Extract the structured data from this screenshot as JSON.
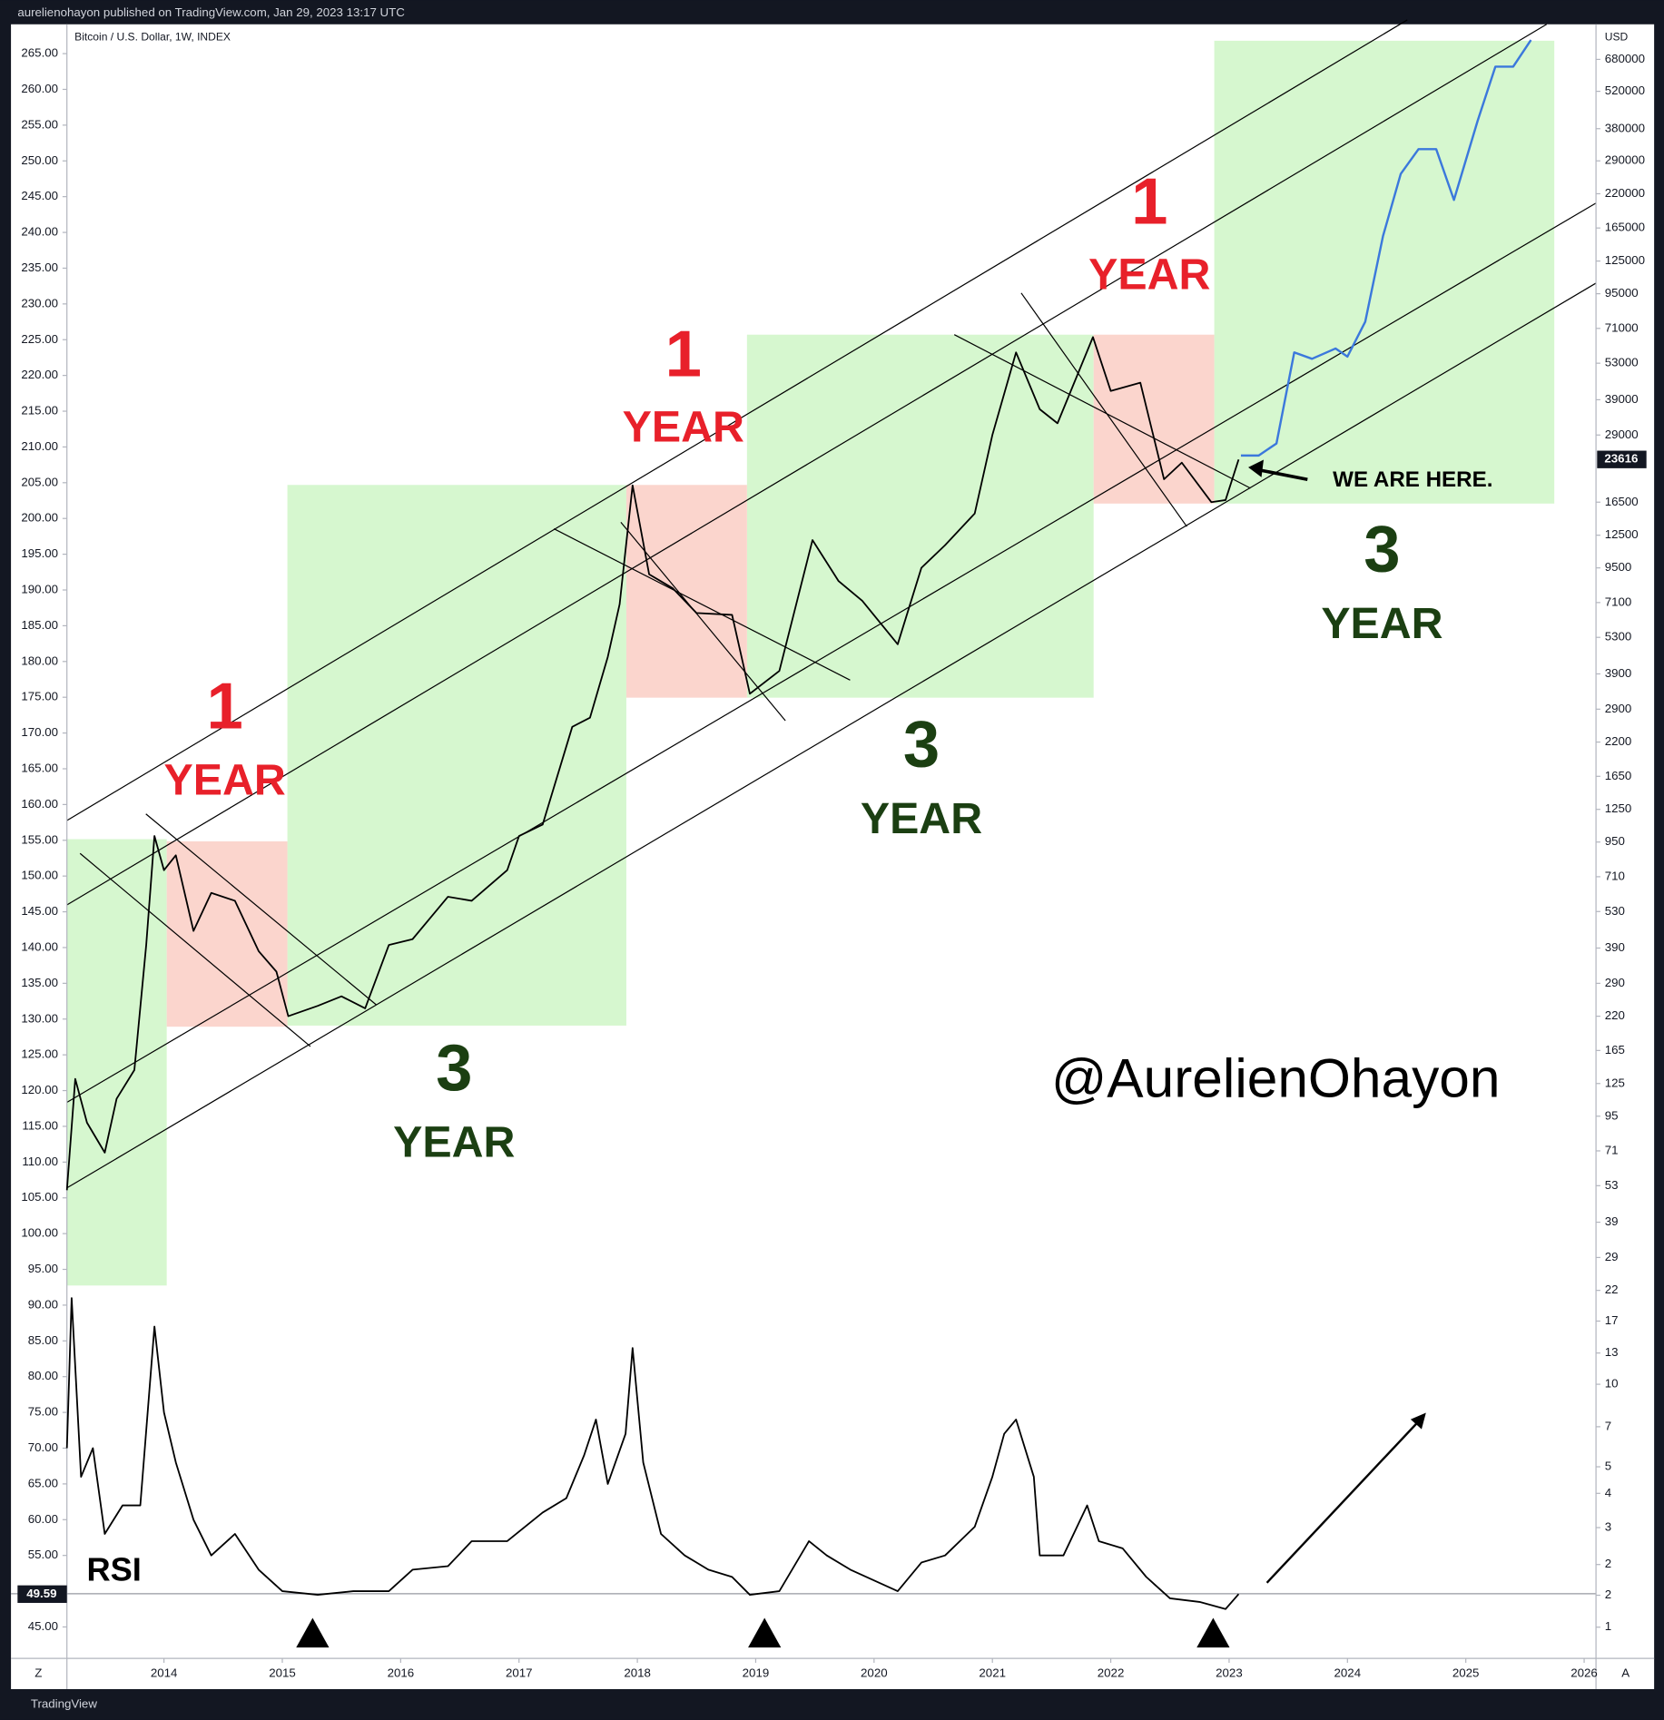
{
  "header": "aurelienohayon published on TradingView.com, Jan 29, 2023 13:17 UTC",
  "footer": "TradingView",
  "buttons": [
    "Z",
    "A"
  ],
  "chart_data": {
    "type": "line",
    "title": "Bitcoin / U.S. Dollar, 1W, INDEX",
    "y2label": "USD",
    "xlim": [
      2013.18,
      2026.1
    ],
    "xticks": [
      2014,
      2015,
      2016,
      2017,
      2018,
      2019,
      2020,
      2021,
      2022,
      2023,
      2024,
      2025,
      2026
    ],
    "ylim": [
      40.6,
      269.1
    ],
    "yticks": [
      {
        "value": 265,
        "label": "265.00"
      },
      {
        "value": 260,
        "label": "260.00"
      },
      {
        "value": 255,
        "label": "255.00"
      },
      {
        "value": 250,
        "label": "250.00"
      },
      {
        "value": 245,
        "label": "245.00"
      },
      {
        "value": 240,
        "label": "240.00"
      },
      {
        "value": 235,
        "label": "235.00"
      },
      {
        "value": 230,
        "label": "230.00"
      },
      {
        "value": 225,
        "label": "225.00"
      },
      {
        "value": 220,
        "label": "220.00"
      },
      {
        "value": 215,
        "label": "215.00"
      },
      {
        "value": 210,
        "label": "210.00"
      },
      {
        "value": 205,
        "label": "205.00"
      },
      {
        "value": 200,
        "label": "200.00"
      },
      {
        "value": 195,
        "label": "195.00"
      },
      {
        "value": 190,
        "label": "190.00"
      },
      {
        "value": 185,
        "label": "185.00"
      },
      {
        "value": 180,
        "label": "180.00"
      },
      {
        "value": 175,
        "label": "175.00"
      },
      {
        "value": 170,
        "label": "170.00"
      },
      {
        "value": 165,
        "label": "165.00"
      },
      {
        "value": 160,
        "label": "160.00"
      },
      {
        "value": 155,
        "label": "155.00"
      },
      {
        "value": 150,
        "label": "150.00"
      },
      {
        "value": 145,
        "label": "145.00"
      },
      {
        "value": 140,
        "label": "140.00"
      },
      {
        "value": 135,
        "label": "135.00"
      },
      {
        "value": 130,
        "label": "130.00"
      },
      {
        "value": 125,
        "label": "125.00"
      },
      {
        "value": 120,
        "label": "120.00"
      },
      {
        "value": 115,
        "label": "115.00"
      },
      {
        "value": 110,
        "label": "110.00"
      },
      {
        "value": 105,
        "label": "105.00"
      },
      {
        "value": 100,
        "label": "100.00"
      },
      {
        "value": 95,
        "label": "95.00"
      },
      {
        "value": 90,
        "label": "90.00"
      },
      {
        "value": 85,
        "label": "85.00"
      },
      {
        "value": 80,
        "label": "80.00"
      },
      {
        "value": 75,
        "label": "75.00"
      },
      {
        "value": 70,
        "label": "70.00"
      },
      {
        "value": 65,
        "label": "65.00"
      },
      {
        "value": 60,
        "label": "60.00"
      },
      {
        "value": 55,
        "label": "55.00"
      },
      {
        "value": 50,
        "label": "50.00"
      },
      {
        "value": 45,
        "label": "45.00"
      }
    ],
    "y2lim": [
      1,
      913000
    ],
    "y2log": true,
    "y2ticks": [
      680000,
      520000,
      380000,
      290000,
      220000,
      165000,
      125000,
      95000,
      71000,
      53000,
      39000,
      29000,
      16500,
      12500,
      9500,
      7100,
      5300,
      3900,
      2900,
      2200,
      1650,
      1250,
      950,
      710,
      530,
      390,
      290,
      220,
      165,
      125,
      95,
      71,
      53,
      39,
      29,
      22,
      17,
      13,
      10,
      7,
      5,
      4,
      3,
      {
        "value": 2.2,
        "label": "2"
      },
      {
        "value": 1.7,
        "label": "2"
      },
      {
        "value": 1.3,
        "label": "1"
      }
    ],
    "series": [
      {
        "color": "#000000",
        "axis": "y2",
        "x": [
          2013.18,
          2013.25,
          2013.35,
          2013.5,
          2013.6,
          2013.75,
          2013.85,
          2013.92,
          2014.0,
          2014.1,
          2014.25,
          2014.4,
          2014.6,
          2014.8,
          2014.95,
          2015.05,
          2015.3,
          2015.5,
          2015.7,
          2015.9,
          2016.1,
          2016.4,
          2016.6,
          2016.9,
          2017.0,
          2017.2,
          2017.45,
          2017.6,
          2017.75,
          2017.85,
          2017.96,
          2018.1,
          2018.3,
          2018.5,
          2018.8,
          2018.95,
          2019.2,
          2019.48,
          2019.7,
          2019.9,
          2020.2,
          2020.4,
          2020.6,
          2020.85,
          2021.0,
          2021.2,
          2021.4,
          2021.55,
          2021.85,
          2022.0,
          2022.25,
          2022.45,
          2022.6,
          2022.85,
          2022.97,
          2023.08
        ],
        "values": [
          51,
          130,
          90,
          70,
          110,
          140,
          400,
          1000,
          750,
          850,
          450,
          620,
          580,
          380,
          320,
          220,
          240,
          260,
          235,
          400,
          420,
          600,
          580,
          750,
          1000,
          1100,
          2500,
          2700,
          4500,
          7000,
          19000,
          9000,
          8000,
          6500,
          6400,
          3300,
          4000,
          12000,
          8500,
          7200,
          5000,
          9500,
          11500,
          15000,
          29000,
          58000,
          36000,
          32000,
          66000,
          42000,
          45000,
          20000,
          23000,
          16500,
          16800,
          23616
        ]
      },
      {
        "color": "#3b78dc",
        "axis": "y2",
        "x": [
          2023.1,
          2023.25,
          2023.4,
          2023.55,
          2023.7,
          2023.9,
          2024.0,
          2024.15,
          2024.3,
          2024.45,
          2024.6,
          2024.75,
          2024.9,
          2025.1,
          2025.25,
          2025.4,
          2025.55
        ],
        "values": [
          24400,
          24400,
          27000,
          58000,
          55000,
          60000,
          56000,
          75000,
          154000,
          260000,
          320000,
          320000,
          209000,
          406000,
          640000,
          640000,
          800000
        ]
      },
      {
        "color": "#000000",
        "axis": "y",
        "name": "RSI",
        "x": [
          2013.18,
          2013.22,
          2013.3,
          2013.4,
          2013.5,
          2013.65,
          2013.8,
          2013.92,
          2014.0,
          2014.1,
          2014.25,
          2014.4,
          2014.6,
          2014.8,
          2015.0,
          2015.3,
          2015.6,
          2015.9,
          2016.1,
          2016.4,
          2016.6,
          2016.9,
          2017.2,
          2017.4,
          2017.55,
          2017.65,
          2017.75,
          2017.9,
          2017.96,
          2018.05,
          2018.2,
          2018.4,
          2018.6,
          2018.8,
          2018.95,
          2019.2,
          2019.45,
          2019.6,
          2019.8,
          2020.2,
          2020.4,
          2020.6,
          2020.85,
          2021.0,
          2021.1,
          2021.2,
          2021.35,
          2021.4,
          2021.6,
          2021.8,
          2021.9,
          2022.1,
          2022.3,
          2022.5,
          2022.75,
          2022.97,
          2023.08
        ],
        "values": [
          70,
          91,
          66,
          70,
          58,
          62,
          62,
          87,
          75,
          68,
          60,
          55,
          58,
          53,
          50,
          49.5,
          50,
          50,
          53,
          53.5,
          57,
          57,
          61,
          63,
          69,
          74,
          65,
          72,
          84,
          68,
          58,
          55,
          53,
          52,
          49.5,
          50,
          57,
          55,
          53,
          50,
          54,
          55,
          59,
          66,
          72,
          74,
          66,
          55,
          55,
          62,
          57,
          56,
          52,
          49,
          48.5,
          47.5,
          49.59
        ]
      }
    ],
    "annotations": [
      "1",
      "YEAR",
      "1",
      "YEAR",
      "1",
      "YEAR",
      "3",
      "YEAR",
      "3",
      "YEAR",
      "3",
      "YEAR",
      "WE ARE HERE.",
      "@AurelienOhayon"
    ]
  }
}
